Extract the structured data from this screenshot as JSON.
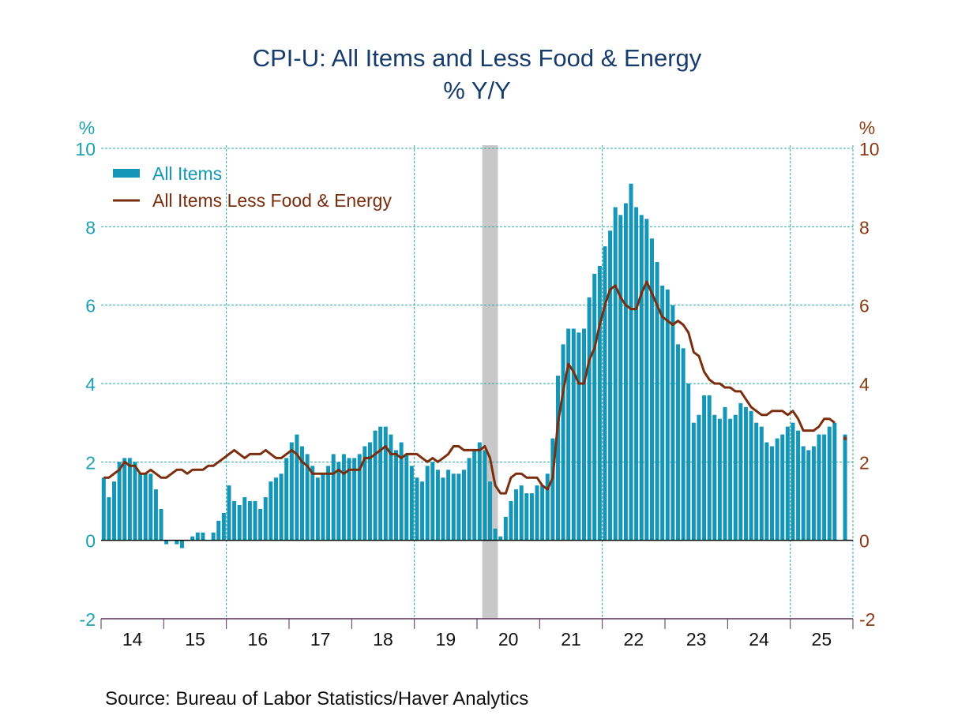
{
  "chart_data": {
    "type": "bar+line",
    "title": "CPI-U: All Items and Less Food & Energy",
    "subtitle": "% Y/Y",
    "left_axis": {
      "label": "%",
      "ylim": [
        -2,
        10
      ],
      "ticks": [
        "10",
        "8",
        "6",
        "4",
        "2",
        "0",
        "-2"
      ],
      "color": "#1ba1b3"
    },
    "right_axis": {
      "label": "%",
      "ylim": [
        -2,
        10
      ],
      "ticks": [
        "10",
        "8",
        "6",
        "4",
        "2",
        "0",
        "-2"
      ],
      "color": "#8a3a12"
    },
    "x_ticks": [
      "14",
      "15",
      "16",
      "17",
      "18",
      "19",
      "20",
      "21",
      "22",
      "23",
      "24",
      "25"
    ],
    "x_start": "2014-01",
    "x_end": "2025-12",
    "grid": true,
    "legend_placement": "top-left",
    "recession_shading": {
      "start": "2020-02",
      "end": "2020-04",
      "color": "#c8c8c8"
    },
    "series": [
      {
        "name": "All Items",
        "type": "bar",
        "color": "#1396b8",
        "values": [
          1.6,
          1.1,
          1.5,
          2.0,
          2.1,
          2.1,
          2.0,
          1.7,
          1.7,
          1.7,
          1.3,
          0.8,
          -0.1,
          0.0,
          -0.1,
          -0.2,
          0.0,
          0.1,
          0.2,
          0.2,
          0.0,
          0.2,
          0.5,
          0.7,
          1.4,
          1.0,
          0.9,
          1.1,
          1.0,
          1.0,
          0.8,
          1.1,
          1.5,
          1.6,
          1.7,
          2.1,
          2.5,
          2.7,
          2.4,
          2.2,
          1.9,
          1.6,
          1.7,
          1.9,
          2.2,
          2.0,
          2.2,
          2.1,
          2.1,
          2.2,
          2.4,
          2.5,
          2.8,
          2.9,
          2.9,
          2.7,
          2.3,
          2.5,
          2.2,
          1.9,
          1.6,
          1.5,
          1.9,
          2.0,
          1.8,
          1.6,
          1.8,
          1.7,
          1.7,
          1.8,
          2.1,
          2.3,
          2.5,
          2.3,
          1.5,
          0.3,
          0.1,
          0.6,
          1.0,
          1.3,
          1.4,
          1.2,
          1.2,
          1.4,
          1.4,
          1.7,
          2.6,
          4.2,
          5.0,
          5.4,
          5.4,
          5.3,
          5.4,
          6.2,
          6.8,
          7.0,
          7.5,
          7.9,
          8.5,
          8.3,
          8.6,
          9.1,
          8.5,
          8.3,
          8.2,
          7.7,
          7.1,
          6.5,
          6.4,
          6.0,
          5.0,
          4.9,
          4.0,
          3.0,
          3.2,
          3.7,
          3.7,
          3.2,
          3.1,
          3.4,
          3.1,
          3.2,
          3.5,
          3.4,
          3.3,
          3.0,
          2.9,
          2.5,
          2.4,
          2.6,
          2.7,
          2.9,
          3.0,
          2.8,
          2.4,
          2.3,
          2.4,
          2.7,
          2.7,
          2.9,
          3.0,
          null,
          2.7
        ]
      },
      {
        "name": "All Items Less Food & Energy",
        "type": "line",
        "color": "#7a2e0e",
        "values": [
          1.6,
          1.6,
          1.7,
          1.8,
          2.0,
          1.9,
          1.9,
          1.7,
          1.7,
          1.8,
          1.7,
          1.6,
          1.6,
          1.7,
          1.8,
          1.8,
          1.7,
          1.8,
          1.8,
          1.8,
          1.9,
          1.9,
          2.0,
          2.1,
          2.2,
          2.3,
          2.2,
          2.1,
          2.2,
          2.2,
          2.2,
          2.3,
          2.2,
          2.1,
          2.1,
          2.2,
          2.3,
          2.2,
          2.0,
          1.9,
          1.7,
          1.7,
          1.7,
          1.7,
          1.7,
          1.8,
          1.7,
          1.8,
          1.8,
          1.8,
          2.1,
          2.1,
          2.2,
          2.3,
          2.4,
          2.2,
          2.2,
          2.1,
          2.2,
          2.2,
          2.2,
          2.1,
          2.0,
          2.1,
          2.0,
          2.1,
          2.2,
          2.4,
          2.4,
          2.3,
          2.3,
          2.3,
          2.3,
          2.4,
          2.1,
          1.4,
          1.2,
          1.2,
          1.6,
          1.7,
          1.7,
          1.6,
          1.6,
          1.6,
          1.4,
          1.3,
          1.6,
          3.0,
          3.8,
          4.5,
          4.3,
          4.0,
          4.0,
          4.6,
          4.9,
          5.5,
          6.0,
          6.4,
          6.5,
          6.2,
          6.0,
          5.9,
          5.9,
          6.3,
          6.6,
          6.3,
          6.0,
          5.7,
          5.6,
          5.5,
          5.6,
          5.5,
          5.3,
          4.8,
          4.7,
          4.3,
          4.1,
          4.0,
          4.0,
          3.9,
          3.9,
          3.8,
          3.8,
          3.6,
          3.4,
          3.3,
          3.2,
          3.2,
          3.3,
          3.3,
          3.3,
          3.2,
          3.3,
          3.1,
          2.8,
          2.8,
          2.8,
          2.9,
          3.1,
          3.1,
          3.0,
          null,
          2.6
        ]
      }
    ]
  },
  "source": "Source:  Bureau of Labor Statistics/Haver Analytics"
}
